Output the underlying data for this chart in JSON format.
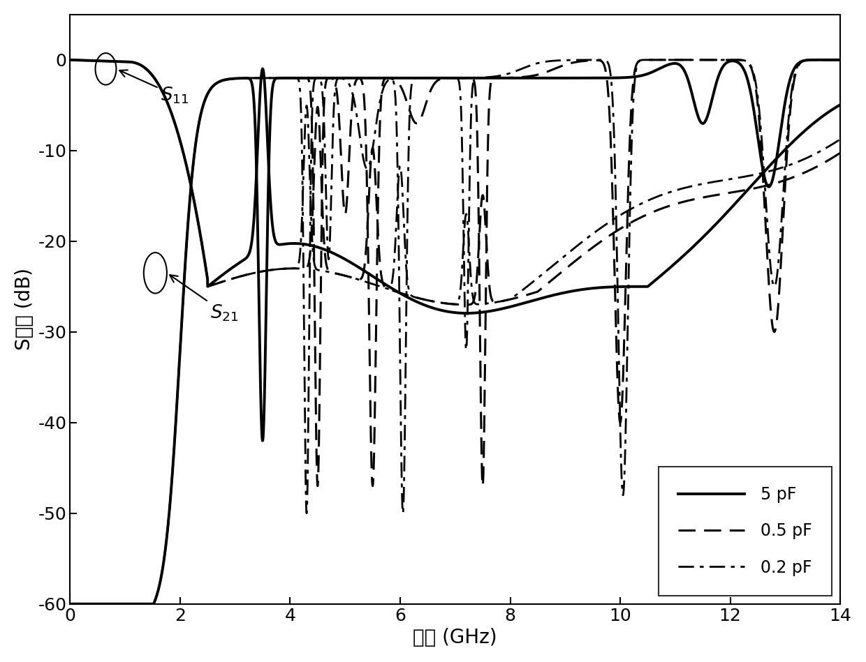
{
  "xlabel": "频率 (GHz)",
  "ylabel": "S参数 (dB)",
  "xlim": [
    0,
    14
  ],
  "ylim": [
    -60,
    5
  ],
  "yticks": [
    0,
    -10,
    -20,
    -30,
    -40,
    -50,
    -60
  ],
  "xticks": [
    0,
    2,
    4,
    6,
    8,
    10,
    12,
    14
  ],
  "legend_labels": [
    "5 pF",
    "0.5 pF",
    "0.2 pF"
  ],
  "xlabel_fontsize": 20,
  "ylabel_fontsize": 20,
  "tick_fontsize": 18,
  "legend_fontsize": 17
}
